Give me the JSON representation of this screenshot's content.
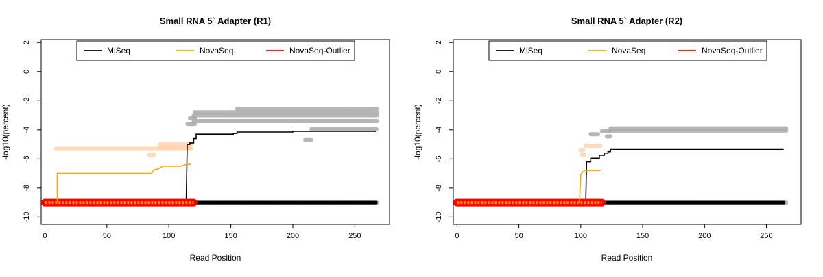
{
  "chart_data": [
    {
      "type": "line",
      "title": "Small RNA 5` Adapter (R1)",
      "xlabel": "Read Position",
      "ylabel": "-log10(percent)",
      "xlim": [
        -3,
        278
      ],
      "ylim": [
        -10.5,
        2.2
      ],
      "xticks": [
        0,
        50,
        100,
        150,
        200,
        250
      ],
      "yticks": [
        2,
        0,
        -2,
        -4,
        -6,
        -8,
        -10
      ],
      "legend": {
        "position": "top",
        "entries": [
          {
            "label": "MiSeq",
            "color": "#000000"
          },
          {
            "label": "NovaSeq",
            "color": "#FFA500"
          },
          {
            "label": "NovaSeq-Outlier",
            "color": "#FF0000"
          }
        ]
      },
      "series": [
        {
          "name": "MiSeq",
          "color": "#000000",
          "points": [
            [
              1,
              -9
            ],
            [
              113,
              -9
            ],
            [
              114,
              -9
            ],
            [
              114.8,
              -5.0
            ],
            [
              117,
              -5.0
            ],
            [
              117,
              -4.9
            ],
            [
              120,
              -4.9
            ],
            [
              120,
              -4.6
            ],
            [
              122,
              -4.6
            ],
            [
              122,
              -4.3
            ],
            [
              145,
              -4.3
            ],
            [
              145,
              -4.3
            ],
            [
              152,
              -4.3
            ],
            [
              152,
              -4.25
            ],
            [
              155,
              -4.25
            ],
            [
              155,
              -4.15
            ],
            [
              200,
              -4.15
            ],
            [
              200,
              -4.1
            ],
            [
              267,
              -4.1
            ]
          ]
        },
        {
          "name": "NovaSeq",
          "color": "#FFA500",
          "points": [
            [
              10,
              -9
            ],
            [
              10,
              -7.0
            ],
            [
              86,
              -7.0
            ],
            [
              88,
              -6.75
            ],
            [
              91,
              -6.7
            ],
            [
              93,
              -6.6
            ],
            [
              95,
              -6.5
            ],
            [
              110,
              -6.5
            ],
            [
              113,
              -6.4
            ],
            [
              118,
              -6.35
            ]
          ]
        },
        {
          "name": "NovaSeq-Outlier",
          "color": "#FF0000",
          "style": "thick-band",
          "points": [
            [
              0,
              -9
            ],
            [
              120,
              -9
            ]
          ]
        }
      ],
      "scatter_bands": [
        {
          "color": "#aaaaaa",
          "y": -9,
          "x": [
            117,
            268
          ]
        },
        {
          "color": "#aaaaaa",
          "y": -3.2,
          "x": [
            117,
            121
          ]
        },
        {
          "color": "#aaaaaa",
          "y": -3.6,
          "x": [
            115,
            121
          ]
        },
        {
          "color": "#aaaaaa",
          "y": -3.4,
          "x": [
            120,
            268
          ]
        },
        {
          "color": "#aaaaaa",
          "y": -3.0,
          "x": [
            120,
            268
          ]
        },
        {
          "color": "#aaaaaa",
          "y": -2.8,
          "x": [
            121,
            268
          ]
        },
        {
          "color": "#aaaaaa",
          "y": -2.55,
          "x": [
            155,
            268
          ]
        },
        {
          "color": "#aaaaaa",
          "y": -3.95,
          "x": [
            215,
            268
          ]
        },
        {
          "color": "#aaaaaa",
          "y": -4.7,
          "x": [
            210,
            215
          ]
        },
        {
          "color": "#ffd4ad",
          "y": -5.3,
          "x": [
            9,
            118
          ]
        },
        {
          "color": "#ffd4ad",
          "y": -5.7,
          "x": [
            84,
            88
          ]
        },
        {
          "color": "#ffd4ad",
          "y": -5.0,
          "x": [
            93,
            118
          ]
        },
        {
          "color": "#ffd4ad",
          "y": -5.25,
          "x": [
            92,
            117
          ]
        }
      ]
    },
    {
      "type": "line",
      "title": "Small RNA 5` Adapter (R2)",
      "xlabel": "Read Position",
      "ylabel": "-log10(percent)",
      "xlim": [
        -3,
        278
      ],
      "ylim": [
        -10.5,
        2.2
      ],
      "xticks": [
        0,
        50,
        100,
        150,
        200,
        250
      ],
      "yticks": [
        2,
        0,
        -2,
        -4,
        -6,
        -8,
        -10
      ],
      "legend": {
        "position": "top",
        "entries": [
          {
            "label": "MiSeq",
            "color": "#000000"
          },
          {
            "label": "NovaSeq",
            "color": "#FFA500"
          },
          {
            "label": "NovaSeq-Outlier",
            "color": "#FF0000"
          }
        ]
      },
      "series": [
        {
          "name": "MiSeq",
          "color": "#000000",
          "points": [
            [
              1,
              -9
            ],
            [
              104,
              -9
            ],
            [
              104.7,
              -6.2
            ],
            [
              108,
              -6.2
            ],
            [
              108,
              -5.95
            ],
            [
              115,
              -5.95
            ],
            [
              115,
              -5.75
            ],
            [
              119,
              -5.75
            ],
            [
              119,
              -5.6
            ],
            [
              122,
              -5.6
            ],
            [
              122,
              -5.5
            ],
            [
              124,
              -5.5
            ],
            [
              124,
              -5.35
            ],
            [
              264,
              -5.35
            ]
          ]
        },
        {
          "name": "NovaSeq",
          "color": "#FFA500",
          "points": [
            [
              99,
              -9
            ],
            [
              100,
              -7.1
            ],
            [
              101,
              -6.95
            ],
            [
              103,
              -6.8
            ],
            [
              111,
              -6.8
            ],
            [
              116,
              -6.8
            ]
          ]
        },
        {
          "name": "NovaSeq-Outlier",
          "color": "#FF0000",
          "style": "thick-band",
          "points": [
            [
              0,
              -9
            ],
            [
              117,
              -9
            ]
          ]
        }
      ],
      "scatter_bands": [
        {
          "color": "#aaaaaa",
          "y": -9,
          "x": [
            117,
            266
          ]
        },
        {
          "color": "#aaaaaa",
          "y": -3.9,
          "x": [
            124,
            266
          ]
        },
        {
          "color": "#aaaaaa",
          "y": -4.05,
          "x": [
            124,
            266
          ]
        },
        {
          "color": "#aaaaaa",
          "y": -4.1,
          "x": [
            117,
            124
          ]
        },
        {
          "color": "#aaaaaa",
          "y": -4.3,
          "x": [
            108,
            114
          ]
        },
        {
          "color": "#aaaaaa",
          "y": -4.45,
          "x": [
            121,
            124
          ]
        },
        {
          "color": "#ffd4ad",
          "y": -5.1,
          "x": [
            104,
            116
          ]
        },
        {
          "color": "#ffd4ad",
          "y": -5.4,
          "x": [
            100,
            102
          ]
        },
        {
          "color": "#ffd4ad",
          "y": -5.7,
          "x": [
            101,
            103
          ]
        }
      ]
    }
  ]
}
